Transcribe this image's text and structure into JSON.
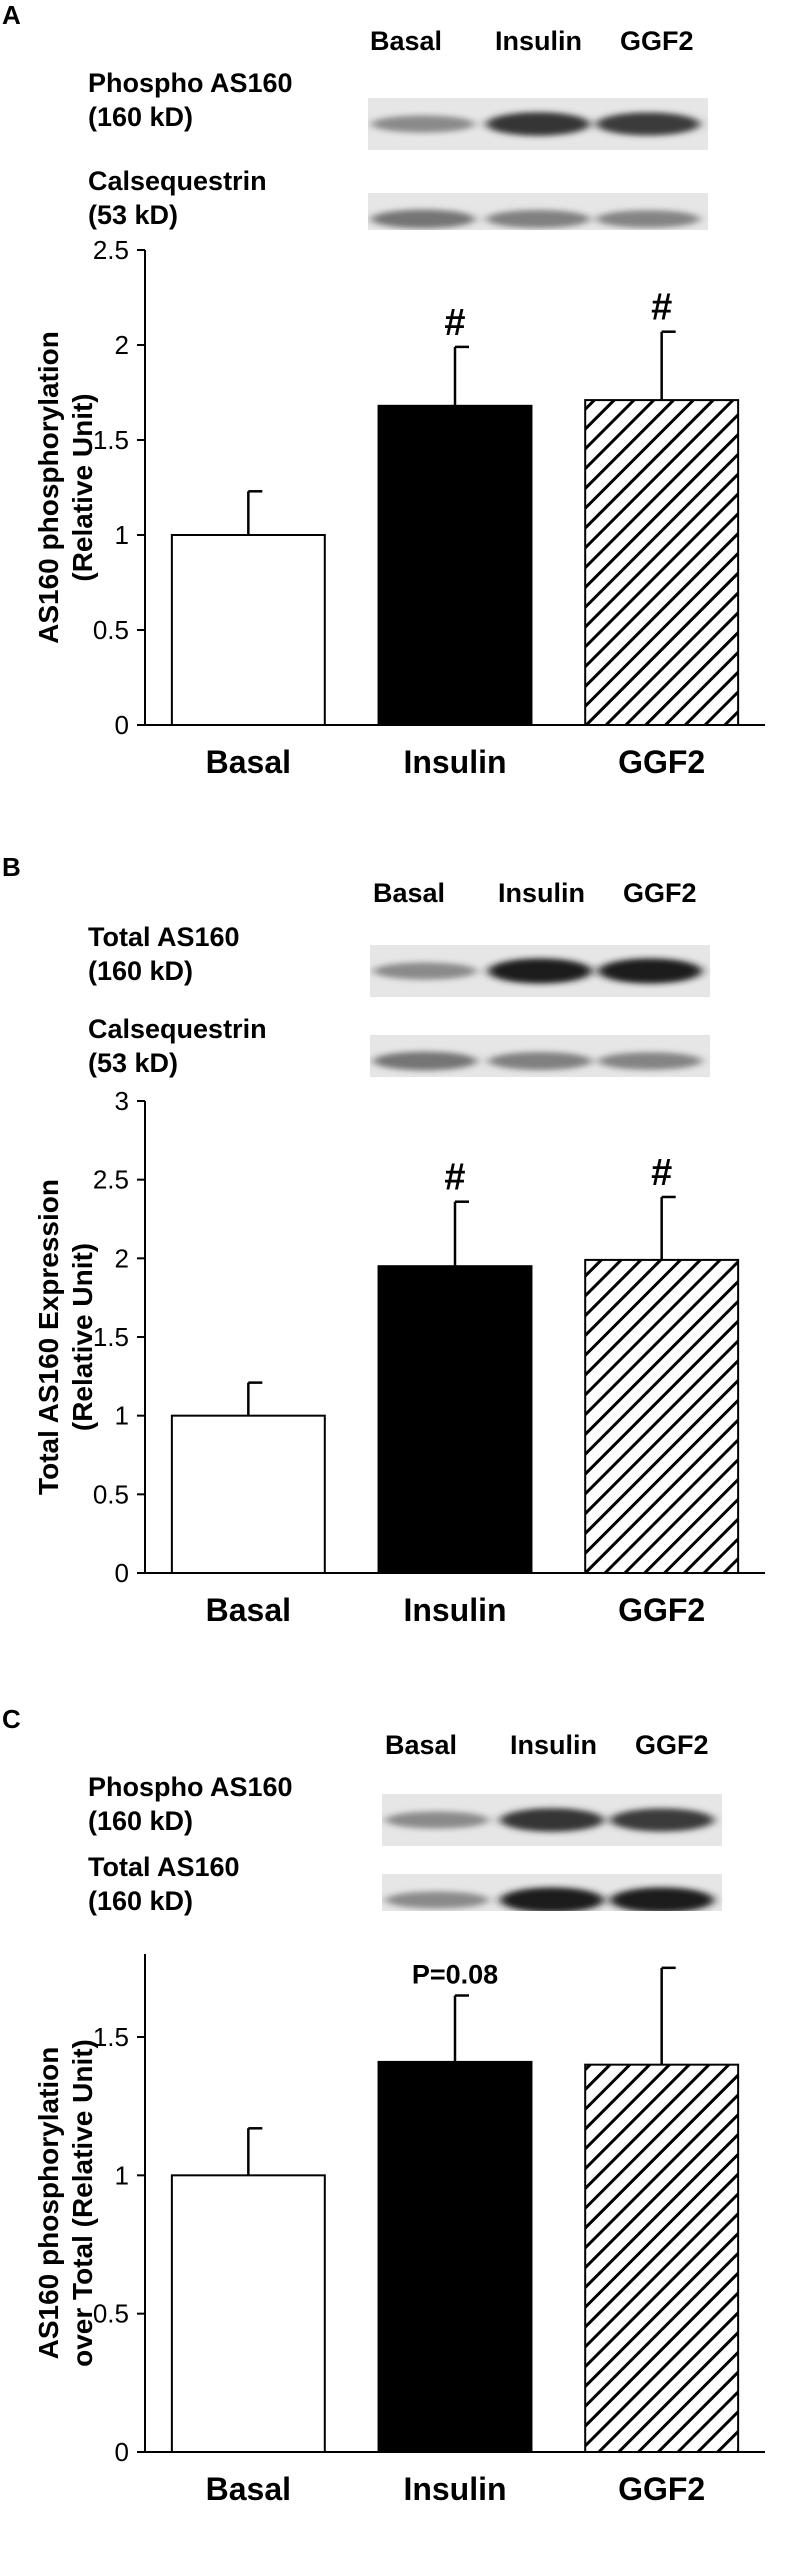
{
  "panels": [
    {
      "label": "A",
      "lanes": [
        "Basal",
        "Insulin",
        "GGF2"
      ],
      "blots": [
        {
          "name": "Phospho AS160",
          "size": "(160 kD)",
          "intensity": [
            0.45,
            0.85,
            0.82
          ]
        },
        {
          "name": "Calsequestrin",
          "size": "(53 kD)",
          "intensity": [
            0.55,
            0.5,
            0.48
          ]
        }
      ]
    },
    {
      "label": "B",
      "lanes": [
        "Basal",
        "Insulin",
        "GGF2"
      ],
      "blots": [
        {
          "name": "Total AS160",
          "size": "(160 kD)",
          "intensity": [
            0.45,
            0.95,
            0.95
          ]
        },
        {
          "name": "Calsequestrin",
          "size": "(53 kD)",
          "intensity": [
            0.55,
            0.5,
            0.48
          ]
        }
      ]
    },
    {
      "label": "C",
      "lanes": [
        "Basal",
        "Insulin",
        "GGF2"
      ],
      "blots": [
        {
          "name": "Phospho AS160",
          "size": "(160 kD)",
          "intensity": [
            0.45,
            0.85,
            0.82
          ]
        },
        {
          "name": "Total AS160",
          "size": "(160 kD)",
          "intensity": [
            0.45,
            0.95,
            0.95
          ]
        }
      ]
    }
  ],
  "chart_data": [
    {
      "type": "bar",
      "categories": [
        "Basal",
        "Insulin",
        "GGF2"
      ],
      "values": [
        1.0,
        1.68,
        1.71
      ],
      "errors": [
        0.23,
        0.31,
        0.36
      ],
      "fills": [
        "white",
        "black",
        "hatch"
      ],
      "annotations": [
        "",
        "#",
        "#"
      ],
      "ylabel": [
        "AS160 phosphorylation",
        "(Relative Unit)"
      ],
      "ylim": [
        0,
        2.5
      ],
      "yticks": [
        0,
        0.5,
        1,
        1.5,
        2,
        2.5
      ],
      "ytick_labels": [
        "0",
        "0.5",
        "1",
        "1.5",
        "2",
        "2.5"
      ],
      "grid": false
    },
    {
      "type": "bar",
      "categories": [
        "Basal",
        "Insulin",
        "GGF2"
      ],
      "values": [
        1.0,
        1.95,
        1.99
      ],
      "errors": [
        0.21,
        0.41,
        0.4
      ],
      "fills": [
        "white",
        "black",
        "hatch"
      ],
      "annotations": [
        "",
        "#",
        "#"
      ],
      "ylabel": [
        "Total AS160 Expression",
        "(Relative Unit)"
      ],
      "ylim": [
        0,
        3
      ],
      "yticks": [
        0,
        0.5,
        1,
        1.5,
        2,
        2.5,
        3
      ],
      "ytick_labels": [
        "0",
        "0.5",
        "1",
        "1.5",
        "2",
        "2.5",
        "3"
      ],
      "grid": false
    },
    {
      "type": "bar",
      "categories": [
        "Basal",
        "Insulin",
        "GGF2"
      ],
      "values": [
        1.0,
        1.41,
        1.4
      ],
      "errors": [
        0.17,
        0.24,
        0.35
      ],
      "fills": [
        "white",
        "black",
        "hatch"
      ],
      "annotations": [
        "",
        "P=0.08",
        ""
      ],
      "ylabel": [
        "AS160 phosphorylation",
        "over Total  (Relative Unit)"
      ],
      "ylim": [
        0,
        1.8
      ],
      "yticks": [
        0,
        0.5,
        1,
        1.5
      ],
      "ytick_labels": [
        "0",
        "0.5",
        "1",
        "1.5"
      ],
      "grid": false
    }
  ]
}
